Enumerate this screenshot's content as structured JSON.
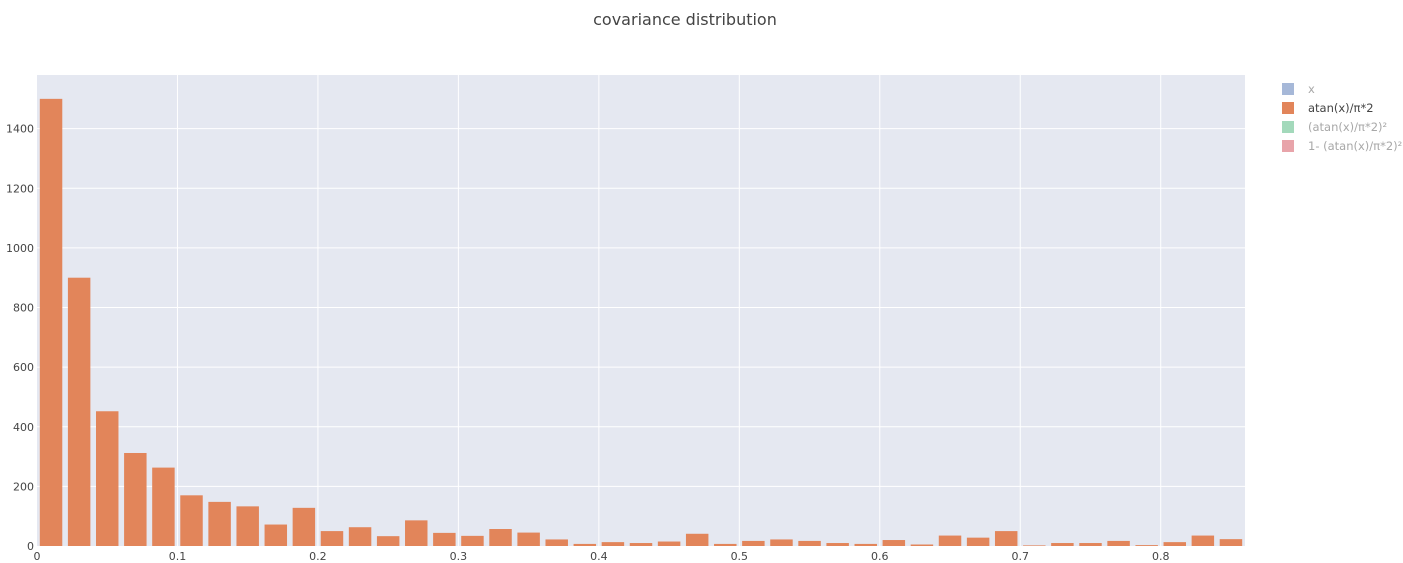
{
  "chart_data": {
    "type": "bar",
    "title": "covariance distribution",
    "xlabel": "",
    "ylabel": "",
    "bin_width": 0.02,
    "xlim": [
      0,
      0.86
    ],
    "ylim": [
      0,
      1580
    ],
    "xticks": [
      0,
      0.1,
      0.2,
      0.3,
      0.4,
      0.5,
      0.6,
      0.7,
      0.8
    ],
    "xtick_labels": [
      "0",
      "0.1",
      "0.2",
      "0.3",
      "0.4",
      "0.5",
      "0.6",
      "0.7",
      "0.8"
    ],
    "yticks": [
      0,
      200,
      400,
      600,
      800,
      1000,
      1200,
      1400
    ],
    "ytick_labels": [
      "0",
      "200",
      "400",
      "600",
      "800",
      "1000",
      "1200",
      "1400"
    ],
    "grid": true,
    "legend_position": "right",
    "series": [
      {
        "name": "x",
        "visible": false,
        "color": "#a6b8d8",
        "x": [],
        "values": []
      },
      {
        "name": "atan(x)/π*2",
        "visible": true,
        "color": "#e2855a",
        "x": [
          0.01,
          0.03,
          0.05,
          0.07,
          0.09,
          0.11,
          0.13,
          0.15,
          0.17,
          0.19,
          0.21,
          0.23,
          0.25,
          0.27,
          0.29,
          0.31,
          0.33,
          0.35,
          0.37,
          0.39,
          0.41,
          0.43,
          0.45,
          0.47,
          0.49,
          0.51,
          0.53,
          0.55,
          0.57,
          0.59,
          0.61,
          0.63,
          0.65,
          0.67,
          0.69,
          0.71,
          0.73,
          0.75,
          0.77,
          0.79,
          0.81,
          0.83,
          0.85
        ],
        "values": [
          1500,
          900,
          452,
          312,
          263,
          170,
          148,
          133,
          72,
          128,
          50,
          63,
          33,
          86,
          44,
          34,
          57,
          45,
          22,
          7,
          13,
          10,
          15,
          41,
          7,
          17,
          22,
          17,
          10,
          7,
          20,
          5,
          35,
          28,
          50,
          2,
          10,
          10,
          17,
          3,
          13,
          35,
          23
        ]
      },
      {
        "name": "(atan(x)/π*2)²",
        "visible": false,
        "color": "#a3d9bb",
        "x": [],
        "values": []
      },
      {
        "name": "1- (atan(x)/π*2)²",
        "visible": false,
        "color": "#e8a4aa",
        "x": [],
        "values": []
      }
    ]
  },
  "colors": {
    "plot_bg": "#e5e8f1",
    "grid": "#ffffff",
    "legend_active_text": "#444444",
    "legend_inactive_text": "#a8a8a8"
  }
}
